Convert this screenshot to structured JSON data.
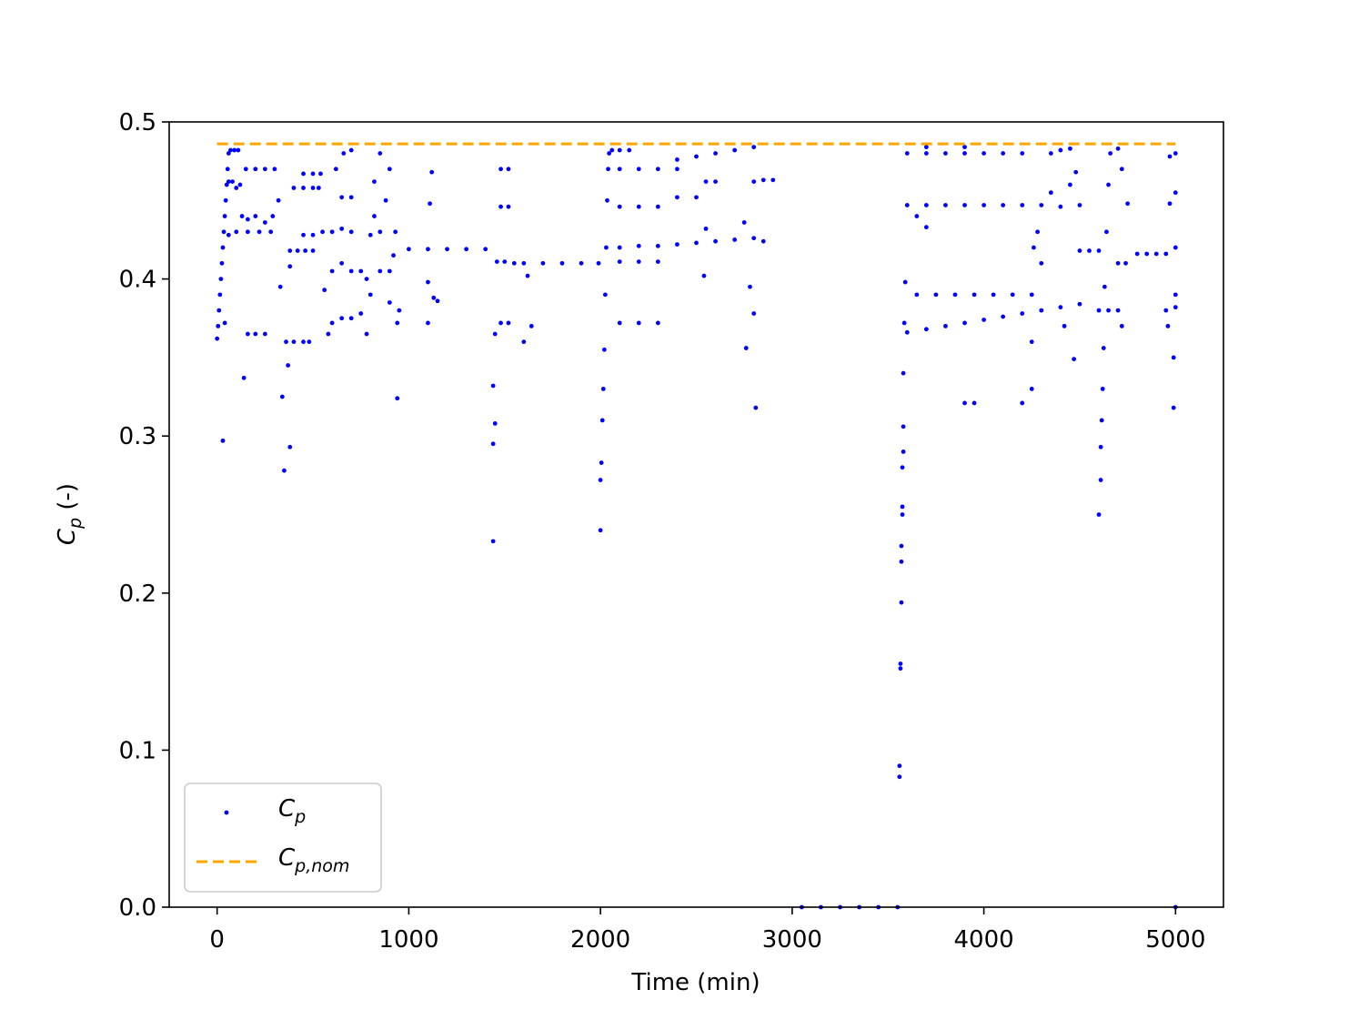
{
  "chart_data": {
    "type": "scatter",
    "xlabel": "Time (min)",
    "ylabel": "C_p (-)",
    "xlim": [
      -250,
      5250
    ],
    "ylim": [
      0,
      0.5
    ],
    "xticks": [
      0,
      1000,
      2000,
      3000,
      4000,
      5000
    ],
    "yticks": [
      {
        "value": 0,
        "label": "0.0"
      },
      0.1,
      0.2,
      0.3,
      0.4,
      0.5
    ],
    "grid": false,
    "legend": "lower left",
    "series": [
      {
        "name": "C_p",
        "type": "scatter",
        "color": "#0000ff",
        "x": [
          0,
          5,
          10,
          15,
          20,
          25,
          30,
          35,
          40,
          45,
          50,
          55,
          60,
          70,
          90,
          110,
          60,
          80,
          100,
          120,
          30,
          40,
          60,
          100,
          130,
          160,
          200,
          250,
          290,
          150,
          200,
          250,
          300,
          160,
          220,
          280,
          160,
          200,
          250,
          140,
          320,
          330,
          340,
          350,
          360,
          370,
          380,
          380,
          420,
          460,
          500,
          400,
          450,
          480,
          380,
          400,
          450,
          500,
          530,
          450,
          500,
          540,
          450,
          500,
          550,
          600,
          650,
          700,
          560,
          580,
          600,
          650,
          700,
          750,
          780,
          620,
          660,
          700,
          650,
          700,
          600,
          650,
          700,
          750,
          780,
          800,
          800,
          850,
          820,
          850,
          820,
          880,
          900,
          850,
          900,
          920,
          930,
          900,
          940,
          940,
          950,
          1000,
          1100,
          1200,
          1300,
          1400,
          1120,
          1110,
          1130,
          1150,
          1100,
          1100,
          1440,
          1440,
          1440,
          1450,
          1450,
          1480,
          1520,
          1460,
          1500,
          1550,
          1600,
          1480,
          1520,
          1480,
          1520,
          1640,
          1600,
          1620,
          1700,
          1800,
          1900,
          1990,
          2000,
          2000,
          2005,
          2010,
          2015,
          2020,
          2025,
          2030,
          2035,
          2040,
          2045,
          2060,
          2100,
          2150,
          2100,
          2200,
          2300,
          2400,
          2100,
          2200,
          2300,
          2100,
          2200,
          2300,
          2100,
          2200,
          2300,
          2100,
          2200,
          2400,
          2500,
          2600,
          2700,
          2800,
          2400,
          2500,
          2550,
          2600,
          2300,
          2400,
          2500,
          2600,
          2700,
          2800,
          2550,
          2540,
          2750,
          2760,
          2780,
          2800,
          2810,
          2800,
          2850,
          2900,
          2850,
          3050,
          3150,
          3250,
          3350,
          3450,
          3550,
          3560,
          3560,
          3565,
          3565,
          3570,
          3570,
          3570,
          3575,
          3575,
          3575,
          3580,
          3580,
          3580,
          3585,
          3590,
          3600,
          3700,
          3800,
          3900,
          4000,
          4100,
          4200,
          4300,
          4400,
          4500,
          3600,
          3700,
          3800,
          3900,
          4000,
          4100,
          4200,
          3600,
          3700,
          3800,
          3900,
          4000,
          4100,
          4200,
          3650,
          3700,
          3650,
          3750,
          3850,
          3950,
          4050,
          4150,
          4250,
          3900,
          3950,
          3700,
          3900,
          4200,
          4250,
          4250,
          4260,
          4280,
          4300,
          4350,
          4300,
          4400,
          4450,
          4480,
          4350,
          4400,
          4450,
          4500,
          4500,
          4550,
          4600,
          4420,
          4470,
          4600,
          4650,
          4700,
          4600,
          4610,
          4610,
          4615,
          4620,
          4625,
          4630,
          4640,
          4650,
          4660,
          4700,
          4720,
          4700,
          4740,
          4720,
          4750,
          4800,
          4850,
          4900,
          4950,
          4950,
          4960,
          4970,
          4970,
          4990,
          4990,
          5000,
          5000,
          5000,
          5000,
          5000,
          5000
        ],
        "values": [
          0.362,
          0.37,
          0.38,
          0.39,
          0.4,
          0.41,
          0.42,
          0.43,
          0.44,
          0.45,
          0.46,
          0.47,
          0.48,
          0.482,
          0.482,
          0.482,
          0.462,
          0.462,
          0.458,
          0.46,
          0.297,
          0.372,
          0.428,
          0.43,
          0.44,
          0.438,
          0.44,
          0.436,
          0.44,
          0.47,
          0.47,
          0.47,
          0.47,
          0.43,
          0.43,
          0.43,
          0.365,
          0.365,
          0.365,
          0.337,
          0.45,
          0.395,
          0.325,
          0.278,
          0.36,
          0.345,
          0.293,
          0.418,
          0.418,
          0.418,
          0.418,
          0.36,
          0.36,
          0.36,
          0.408,
          0.458,
          0.458,
          0.458,
          0.458,
          0.467,
          0.467,
          0.467,
          0.428,
          0.428,
          0.43,
          0.43,
          0.432,
          0.43,
          0.393,
          0.365,
          0.372,
          0.375,
          0.375,
          0.378,
          0.365,
          0.47,
          0.48,
          0.482,
          0.452,
          0.452,
          0.405,
          0.41,
          0.405,
          0.405,
          0.4,
          0.39,
          0.428,
          0.43,
          0.462,
          0.48,
          0.44,
          0.45,
          0.47,
          0.405,
          0.405,
          0.415,
          0.43,
          0.385,
          0.372,
          0.324,
          0.38,
          0.419,
          0.419,
          0.419,
          0.419,
          0.419,
          0.468,
          0.448,
          0.388,
          0.386,
          0.398,
          0.372,
          0.332,
          0.295,
          0.233,
          0.308,
          0.365,
          0.372,
          0.372,
          0.411,
          0.411,
          0.41,
          0.41,
          0.47,
          0.47,
          0.446,
          0.446,
          0.37,
          0.36,
          0.402,
          0.41,
          0.41,
          0.41,
          0.41,
          0.24,
          0.272,
          0.283,
          0.31,
          0.33,
          0.355,
          0.39,
          0.42,
          0.45,
          0.47,
          0.48,
          0.482,
          0.482,
          0.482,
          0.47,
          0.47,
          0.47,
          0.47,
          0.446,
          0.446,
          0.446,
          0.411,
          0.411,
          0.411,
          0.372,
          0.372,
          0.372,
          0.42,
          0.421,
          0.476,
          0.478,
          0.48,
          0.482,
          0.484,
          0.452,
          0.452,
          0.462,
          0.462,
          0.421,
          0.422,
          0.423,
          0.424,
          0.425,
          0.426,
          0.432,
          0.402,
          0.436,
          0.356,
          0.395,
          0.378,
          0.318,
          0.462,
          0.463,
          0.463,
          0.424,
          0,
          0,
          0,
          0,
          0,
          0,
          0.083,
          0.09,
          0.152,
          0.155,
          0.194,
          0.22,
          0.23,
          0.25,
          0.255,
          0.28,
          0.29,
          0.306,
          0.34,
          0.372,
          0.398,
          0.366,
          0.368,
          0.37,
          0.372,
          0.374,
          0.376,
          0.378,
          0.38,
          0.382,
          0.384,
          0.447,
          0.447,
          0.447,
          0.447,
          0.447,
          0.447,
          0.447,
          0.48,
          0.48,
          0.48,
          0.48,
          0.48,
          0.48,
          0.48,
          0.44,
          0.433,
          0.39,
          0.39,
          0.39,
          0.39,
          0.39,
          0.39,
          0.39,
          0.321,
          0.321,
          0.484,
          0.484,
          0.321,
          0.33,
          0.36,
          0.42,
          0.43,
          0.447,
          0.455,
          0.41,
          0.446,
          0.46,
          0.468,
          0.48,
          0.482,
          0.483,
          0.447,
          0.418,
          0.418,
          0.418,
          0.37,
          0.349,
          0.38,
          0.38,
          0.38,
          0.25,
          0.272,
          0.293,
          0.31,
          0.33,
          0.356,
          0.395,
          0.43,
          0.46,
          0.48,
          0.483,
          0.47,
          0.41,
          0.41,
          0.37,
          0.448,
          0.416,
          0.416,
          0.416,
          0.416,
          0.38,
          0.37,
          0.448,
          0.478,
          0.318,
          0.35,
          0.39,
          0.42,
          0.455,
          0.48,
          0.382,
          0
        ]
      },
      {
        "name": "C_p,nom",
        "type": "line",
        "dashed": true,
        "color": "#ffa500",
        "x": [
          0,
          5000
        ],
        "values": [
          0.486,
          0.486
        ]
      }
    ]
  }
}
